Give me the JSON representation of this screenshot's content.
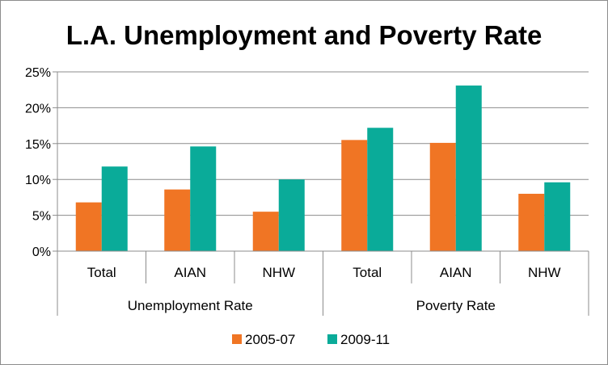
{
  "chart_data": {
    "type": "bar",
    "title": "L.A. Unemployment and Poverty Rate",
    "xlabel": "",
    "ylabel": "",
    "ylim": [
      0,
      25
    ],
    "y_ticks": [
      "0%",
      "5%",
      "10%",
      "15%",
      "20%",
      "25%"
    ],
    "y_tick_values": [
      0,
      5,
      10,
      15,
      20,
      25
    ],
    "grid": true,
    "legend_position": "bottom",
    "groups": [
      {
        "label": "Unemployment Rate",
        "categories": [
          "Total",
          "AIAN",
          "NHW"
        ]
      },
      {
        "label": "Poverty Rate",
        "categories": [
          "Total",
          "AIAN",
          "NHW"
        ]
      }
    ],
    "categories": [
      "Total",
      "AIAN",
      "NHW",
      "Total",
      "AIAN",
      "NHW"
    ],
    "series": [
      {
        "name": "2005-07",
        "color": "#f07524",
        "values": [
          6.8,
          8.6,
          5.5,
          15.5,
          15.1,
          8.0
        ]
      },
      {
        "name": "2009-11",
        "color": "#0aab99",
        "values": [
          11.8,
          14.6,
          10.0,
          17.2,
          23.1,
          9.6
        ]
      }
    ]
  }
}
